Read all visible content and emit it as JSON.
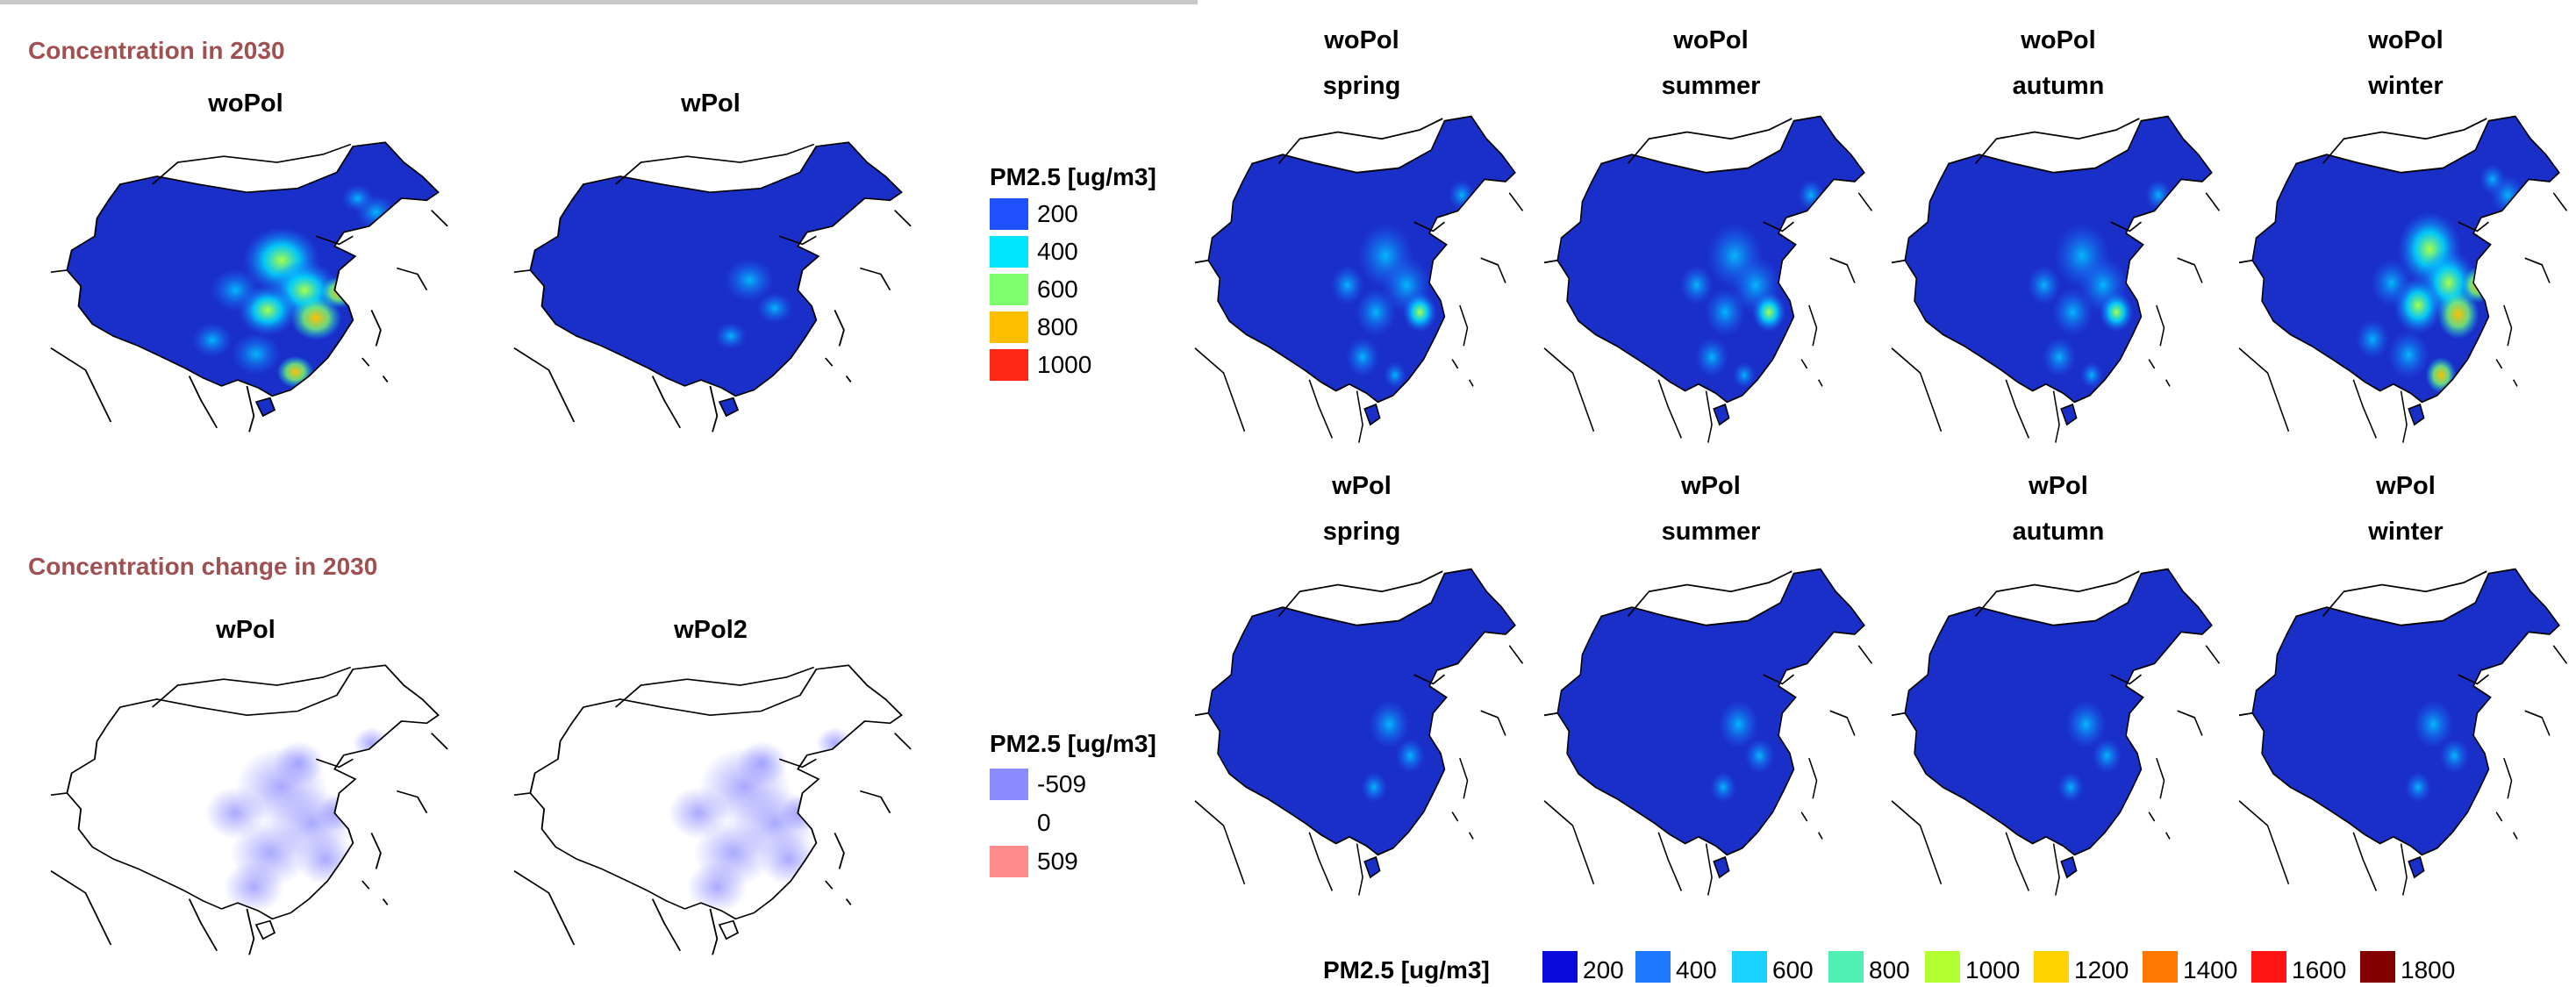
{
  "left": {
    "concentration_title": "Concentration in 2030",
    "change_title": "Concentration change in 2030",
    "top_maps": [
      {
        "title": "woPol",
        "style": "hot"
      },
      {
        "title": "wPol",
        "style": "calm"
      }
    ],
    "bottom_maps": [
      {
        "title": "wPol",
        "style": "diff"
      },
      {
        "title": "wPol2",
        "style": "diff"
      }
    ],
    "legend_concentration": {
      "title": "PM2.5 [ug/m3]",
      "items": [
        {
          "label": "200",
          "color": "#1e50ff"
        },
        {
          "label": "400",
          "color": "#00e6ff"
        },
        {
          "label": "600",
          "color": "#80ff6e"
        },
        {
          "label": "800",
          "color": "#ffbe00"
        },
        {
          "label": "1000",
          "color": "#ff2814"
        }
      ]
    },
    "legend_change": {
      "title": "PM2.5 [ug/m3]",
      "items": [
        {
          "label": "-509",
          "color": "#8c8cff"
        },
        {
          "label": "0",
          "color": "#ffffff"
        },
        {
          "label": "509",
          "color": "#ff8c8c"
        }
      ]
    }
  },
  "right": {
    "top_row": [
      {
        "scenario": "woPol",
        "season": "spring",
        "style": "warm"
      },
      {
        "scenario": "woPol",
        "season": "summer",
        "style": "warm"
      },
      {
        "scenario": "woPol",
        "season": "autumn",
        "style": "warm"
      },
      {
        "scenario": "woPol",
        "season": "winter",
        "style": "hot"
      }
    ],
    "bottom_row": [
      {
        "scenario": "wPol",
        "season": "spring",
        "style": "calm"
      },
      {
        "scenario": "wPol",
        "season": "summer",
        "style": "calm"
      },
      {
        "scenario": "wPol",
        "season": "autumn",
        "style": "calm"
      },
      {
        "scenario": "wPol",
        "season": "winter",
        "style": "calm"
      }
    ],
    "legend": {
      "title": "PM2.5 [ug/m3]",
      "items": [
        {
          "label": "200",
          "color": "#0a0adc"
        },
        {
          "label": "400",
          "color": "#1e78ff"
        },
        {
          "label": "600",
          "color": "#19d2ff"
        },
        {
          "label": "800",
          "color": "#50f0b4"
        },
        {
          "label": "1000",
          "color": "#b4ff32"
        },
        {
          "label": "1200",
          "color": "#ffd200"
        },
        {
          "label": "1400",
          "color": "#ff7800"
        },
        {
          "label": "1600",
          "color": "#ff1414"
        },
        {
          "label": "1800",
          "color": "#820000"
        }
      ]
    }
  }
}
